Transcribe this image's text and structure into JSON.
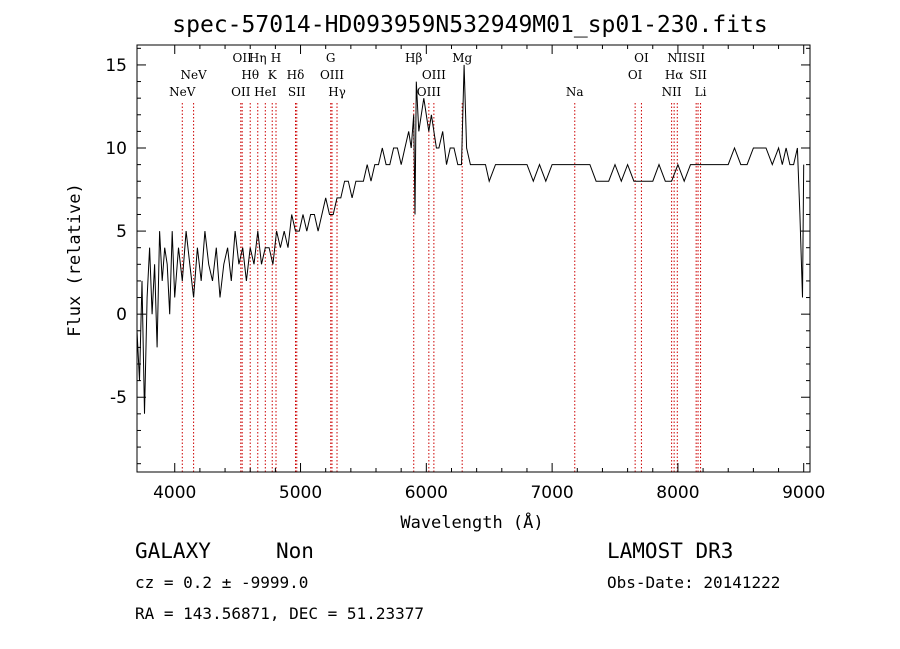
{
  "chart_data": {
    "type": "line",
    "title": "spec-57014-HD093959N532949M01_sp01-230.fits",
    "xlabel": "Wavelength (Å)",
    "ylabel": "Flux (relative)",
    "xlim": [
      3700,
      9050
    ],
    "ylim": [
      -9.5,
      16.2
    ],
    "xticks": [
      4000,
      5000,
      6000,
      7000,
      8000,
      9000
    ],
    "yticks": [
      -5,
      0,
      5,
      10,
      15
    ],
    "series": [
      {
        "name": "flux",
        "x": [
          3700,
          3720,
          3740,
          3760,
          3780,
          3800,
          3820,
          3840,
          3860,
          3880,
          3900,
          3920,
          3940,
          3960,
          3980,
          4000,
          4030,
          4060,
          4090,
          4120,
          4150,
          4180,
          4210,
          4240,
          4270,
          4300,
          4330,
          4360,
          4390,
          4420,
          4450,
          4480,
          4510,
          4540,
          4570,
          4600,
          4630,
          4660,
          4690,
          4720,
          4750,
          4780,
          4810,
          4840,
          4870,
          4900,
          4930,
          4960,
          4990,
          5020,
          5050,
          5080,
          5110,
          5140,
          5170,
          5200,
          5230,
          5260,
          5290,
          5320,
          5350,
          5380,
          5410,
          5440,
          5470,
          5500,
          5530,
          5560,
          5590,
          5620,
          5650,
          5680,
          5710,
          5740,
          5770,
          5800,
          5830,
          5860,
          5880,
          5900,
          5910,
          5920,
          5940,
          5960,
          5980,
          6000,
          6020,
          6040,
          6060,
          6080,
          6100,
          6130,
          6160,
          6190,
          6220,
          6250,
          6280,
          6300,
          6320,
          6350,
          6380,
          6410,
          6440,
          6470,
          6500,
          6550,
          6600,
          6650,
          6700,
          6750,
          6800,
          6850,
          6900,
          6950,
          7000,
          7050,
          7100,
          7150,
          7200,
          7250,
          7300,
          7350,
          7400,
          7450,
          7500,
          7550,
          7600,
          7650,
          7700,
          7750,
          7800,
          7850,
          7900,
          7950,
          8000,
          8050,
          8100,
          8150,
          8200,
          8250,
          8300,
          8350,
          8400,
          8450,
          8500,
          8550,
          8600,
          8650,
          8700,
          8750,
          8800,
          8830,
          8860,
          8890,
          8920,
          8950,
          8970,
          8990,
          9000
        ],
        "y": [
          -1,
          -4,
          2,
          -6,
          1,
          4,
          0,
          3,
          -2,
          5,
          2,
          4,
          3,
          0,
          5,
          1,
          4,
          2,
          5,
          3,
          1,
          4,
          2,
          5,
          3,
          2,
          4,
          1,
          3,
          4,
          2,
          5,
          3,
          4,
          2,
          4,
          3,
          5,
          3,
          4,
          4,
          3,
          5,
          4,
          5,
          4,
          6,
          5,
          5,
          6,
          5,
          6,
          6,
          5,
          6,
          7,
          6,
          6,
          7,
          7,
          8,
          8,
          7,
          8,
          8,
          8,
          9,
          8,
          9,
          9,
          10,
          9,
          9,
          10,
          10,
          9,
          10,
          11,
          10,
          12,
          6,
          14,
          11,
          12,
          13,
          12,
          11,
          12,
          11,
          10,
          10,
          11,
          9,
          10,
          10,
          9,
          9,
          15,
          10,
          9,
          9,
          9,
          9,
          9,
          8,
          9,
          9,
          9,
          9,
          9,
          9,
          8,
          9,
          8,
          9,
          9,
          9,
          9,
          9,
          9,
          9,
          8,
          8,
          8,
          9,
          8,
          9,
          8,
          8,
          8,
          8,
          9,
          8,
          8,
          9,
          8,
          9,
          9,
          9,
          9,
          9,
          9,
          9,
          10,
          9,
          9,
          10,
          10,
          10,
          9,
          10,
          9,
          10,
          9,
          9,
          10,
          6,
          1,
          9
        ]
      }
    ],
    "emission_lines": [
      {
        "label": "NeV",
        "x": 4060,
        "row": 2
      },
      {
        "label": "NeV",
        "x": 4150,
        "row": 1
      },
      {
        "label": "OII",
        "x": 4525,
        "row": 2
      },
      {
        "label": "OII",
        "x": 4536,
        "row": 0
      },
      {
        "label": "Hθ",
        "x": 4600,
        "row": 1
      },
      {
        "label": "Hη",
        "x": 4660,
        "row": 0
      },
      {
        "label": "HeI",
        "x": 4720,
        "row": 2
      },
      {
        "label": "K",
        "x": 4775,
        "row": 1
      },
      {
        "label": "H",
        "x": 4805,
        "row": 0
      },
      {
        "label": "Hδ",
        "x": 4960,
        "row": 1
      },
      {
        "label": "SII",
        "x": 4970,
        "row": 2
      },
      {
        "label": "G",
        "x": 5240,
        "row": 0
      },
      {
        "label": "OIII",
        "x": 5250,
        "row": 1
      },
      {
        "label": "Hγ",
        "x": 5290,
        "row": 2
      },
      {
        "label": "Hβ",
        "x": 5900,
        "row": 0
      },
      {
        "label": "OIII",
        "x": 6020,
        "row": 2
      },
      {
        "label": "OIII",
        "x": 6060,
        "row": 1
      },
      {
        "label": "Mg",
        "x": 6285,
        "row": 0
      },
      {
        "label": "Na",
        "x": 7180,
        "row": 2
      },
      {
        "label": "OI",
        "x": 7660,
        "row": 1
      },
      {
        "label": "OI",
        "x": 7710,
        "row": 0
      },
      {
        "label": "NII",
        "x": 7950,
        "row": 2
      },
      {
        "label": "Hα",
        "x": 7970,
        "row": 1
      },
      {
        "label": "NII",
        "x": 7995,
        "row": 0
      },
      {
        "label": "SII",
        "x": 8145,
        "row": 0
      },
      {
        "label": "SII",
        "x": 8160,
        "row": 1
      },
      {
        "label": "Li",
        "x": 8180,
        "row": 2
      }
    ]
  },
  "info": {
    "class": "GALAXY",
    "subclass": "Non",
    "survey": "LAMOST DR3",
    "cz": "cz = 0.2 ± -9999.0",
    "obs_date": "Obs-Date: 20141222",
    "radec": "RA = 143.56871, DEC =  51.23377"
  },
  "colors": {
    "line_marker": "#cc0000",
    "spectrum": "#000000",
    "axes": "#000000"
  }
}
